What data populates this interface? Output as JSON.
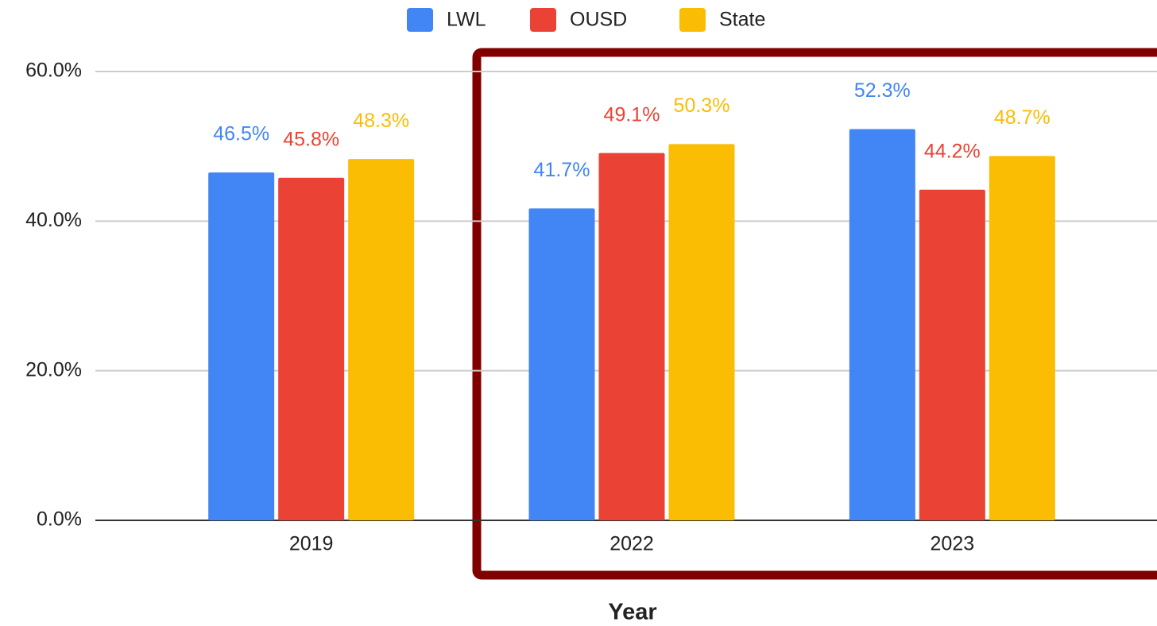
{
  "chart_data": {
    "type": "bar",
    "x_label": "Year",
    "categories": [
      "2019",
      "2022",
      "2023"
    ],
    "series": [
      {
        "name": "LWL",
        "color": "#4285f4",
        "values": [
          46.5,
          41.7,
          52.3
        ],
        "value_labels": [
          "46.5%",
          "41.7%",
          "52.3%"
        ]
      },
      {
        "name": "OUSD",
        "color": "#ea4335",
        "values": [
          45.8,
          49.1,
          44.2
        ],
        "value_labels": [
          "45.8%",
          "49.1%",
          "44.2%"
        ]
      },
      {
        "name": "State",
        "color": "#fbbc04",
        "values": [
          48.3,
          50.3,
          48.7
        ],
        "value_labels": [
          "48.3%",
          "50.3%",
          "48.7%"
        ]
      }
    ],
    "ylim": [
      0,
      60
    ],
    "yticks": [
      {
        "value": 0,
        "label": "0.0%"
      },
      {
        "value": 20,
        "label": "20.0%"
      },
      {
        "value": 40,
        "label": "40.0%"
      },
      {
        "value": 60,
        "label": "60.0%"
      }
    ],
    "grid": true,
    "legend": "top"
  }
}
